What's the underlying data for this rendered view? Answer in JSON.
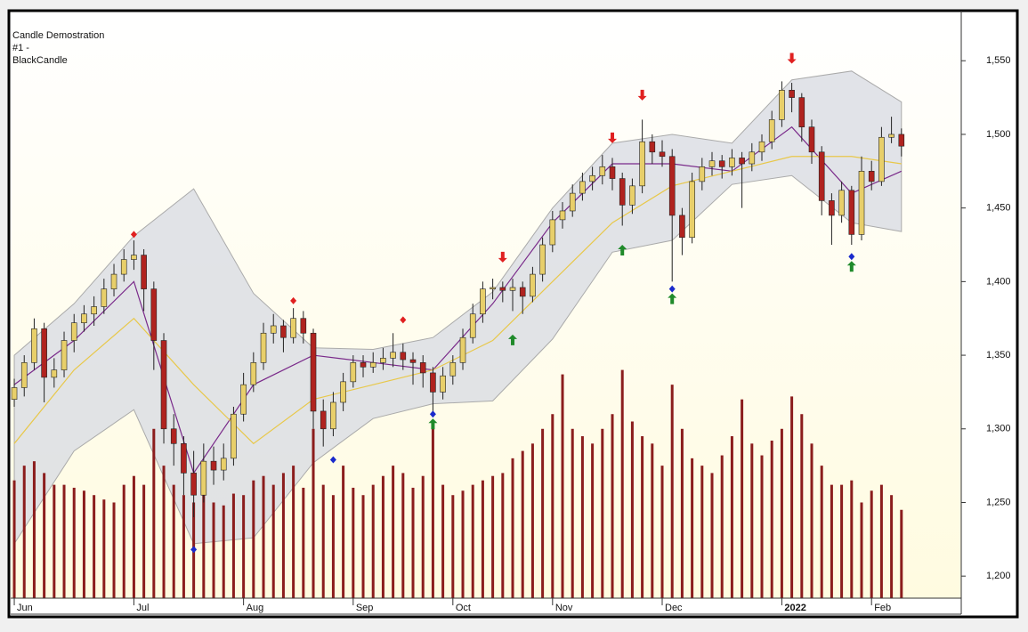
{
  "chart_data": {
    "type": "candlestick",
    "title_lines": [
      "Candle Demostration",
      "#1 -",
      "BlackCandle"
    ],
    "ylim": [
      1185,
      1584
    ],
    "yticks": [
      {
        "value": 1200,
        "label": "1,200"
      },
      {
        "value": 1250,
        "label": "1,250"
      },
      {
        "value": 1300,
        "label": "1,300"
      },
      {
        "value": 1350,
        "label": "1,350"
      },
      {
        "value": 1400,
        "label": "1,400"
      },
      {
        "value": 1450,
        "label": "1,450"
      },
      {
        "value": 1500,
        "label": "1,500"
      },
      {
        "value": 1550,
        "label": "1,550"
      }
    ],
    "xlim": [
      -0.36,
      95
    ],
    "xticks": [
      {
        "value": 0,
        "label": "Jun"
      },
      {
        "value": 12,
        "label": "Jul"
      },
      {
        "value": 23,
        "label": "Aug"
      },
      {
        "value": 34,
        "label": "Sep"
      },
      {
        "value": 44,
        "label": "Oct"
      },
      {
        "value": 54,
        "label": "Nov"
      },
      {
        "value": 65,
        "label": "Dec"
      },
      {
        "value": 77,
        "label": "2022"
      },
      {
        "value": 86,
        "label": "Feb"
      }
    ],
    "up_color": "#e8cf6a",
    "down_color": "#b0231f",
    "volume_color": "#8b1d1d",
    "candles": [
      [
        1320,
        1334,
        1315,
        1328
      ],
      [
        1328,
        1350,
        1322,
        1345
      ],
      [
        1345,
        1375,
        1340,
        1368
      ],
      [
        1368,
        1372,
        1318,
        1335
      ],
      [
        1335,
        1348,
        1328,
        1340
      ],
      [
        1340,
        1366,
        1335,
        1360
      ],
      [
        1360,
        1378,
        1352,
        1372
      ],
      [
        1372,
        1384,
        1366,
        1378
      ],
      [
        1378,
        1390,
        1370,
        1383
      ],
      [
        1383,
        1402,
        1378,
        1395
      ],
      [
        1395,
        1412,
        1390,
        1405
      ],
      [
        1405,
        1422,
        1400,
        1415
      ],
      [
        1415,
        1428,
        1408,
        1418
      ],
      [
        1418,
        1422,
        1380,
        1395
      ],
      [
        1395,
        1400,
        1340,
        1360
      ],
      [
        1360,
        1365,
        1290,
        1300
      ],
      [
        1300,
        1310,
        1275,
        1290
      ],
      [
        1290,
        1295,
        1255,
        1270
      ],
      [
        1270,
        1285,
        1240,
        1255
      ],
      [
        1255,
        1290,
        1250,
        1278
      ],
      [
        1278,
        1288,
        1262,
        1272
      ],
      [
        1272,
        1290,
        1265,
        1280
      ],
      [
        1280,
        1315,
        1275,
        1310
      ],
      [
        1310,
        1338,
        1305,
        1330
      ],
      [
        1330,
        1352,
        1325,
        1345
      ],
      [
        1345,
        1372,
        1340,
        1365
      ],
      [
        1365,
        1378,
        1358,
        1370
      ],
      [
        1370,
        1374,
        1352,
        1362
      ],
      [
        1362,
        1382,
        1358,
        1375
      ],
      [
        1375,
        1380,
        1358,
        1365
      ],
      [
        1365,
        1368,
        1300,
        1312
      ],
      [
        1312,
        1320,
        1288,
        1300
      ],
      [
        1300,
        1325,
        1295,
        1318
      ],
      [
        1318,
        1338,
        1312,
        1332
      ],
      [
        1332,
        1350,
        1328,
        1345
      ],
      [
        1345,
        1350,
        1335,
        1342
      ],
      [
        1342,
        1352,
        1338,
        1345
      ],
      [
        1345,
        1355,
        1340,
        1348
      ],
      [
        1348,
        1365,
        1342,
        1352
      ],
      [
        1352,
        1358,
        1340,
        1347
      ],
      [
        1347,
        1352,
        1330,
        1345
      ],
      [
        1345,
        1350,
        1328,
        1338
      ],
      [
        1338,
        1342,
        1312,
        1325
      ],
      [
        1325,
        1342,
        1320,
        1336
      ],
      [
        1336,
        1350,
        1330,
        1345
      ],
      [
        1345,
        1368,
        1340,
        1362
      ],
      [
        1362,
        1385,
        1358,
        1378
      ],
      [
        1378,
        1400,
        1372,
        1395
      ],
      [
        1395,
        1402,
        1388,
        1396
      ],
      [
        1396,
        1400,
        1386,
        1394
      ],
      [
        1394,
        1402,
        1380,
        1396
      ],
      [
        1396,
        1400,
        1378,
        1390
      ],
      [
        1390,
        1410,
        1386,
        1405
      ],
      [
        1405,
        1430,
        1400,
        1425
      ],
      [
        1425,
        1448,
        1420,
        1442
      ],
      [
        1442,
        1454,
        1436,
        1448
      ],
      [
        1448,
        1466,
        1444,
        1460
      ],
      [
        1460,
        1474,
        1455,
        1468
      ],
      [
        1468,
        1478,
        1462,
        1472
      ],
      [
        1472,
        1486,
        1466,
        1478
      ],
      [
        1478,
        1484,
        1462,
        1470
      ],
      [
        1470,
        1474,
        1438,
        1452
      ],
      [
        1452,
        1470,
        1446,
        1465
      ],
      [
        1465,
        1510,
        1460,
        1495
      ],
      [
        1495,
        1500,
        1480,
        1488
      ],
      [
        1488,
        1496,
        1478,
        1485
      ],
      [
        1485,
        1490,
        1400,
        1445
      ],
      [
        1445,
        1450,
        1418,
        1430
      ],
      [
        1430,
        1474,
        1426,
        1468
      ],
      [
        1468,
        1484,
        1462,
        1478
      ],
      [
        1478,
        1488,
        1472,
        1482
      ],
      [
        1482,
        1486,
        1470,
        1478
      ],
      [
        1478,
        1490,
        1472,
        1484
      ],
      [
        1484,
        1488,
        1450,
        1480
      ],
      [
        1480,
        1494,
        1475,
        1488
      ],
      [
        1488,
        1500,
        1482,
        1495
      ],
      [
        1495,
        1516,
        1490,
        1510
      ],
      [
        1510,
        1536,
        1505,
        1530
      ],
      [
        1530,
        1535,
        1515,
        1525
      ],
      [
        1525,
        1528,
        1495,
        1505
      ],
      [
        1505,
        1510,
        1480,
        1488
      ],
      [
        1488,
        1492,
        1445,
        1455
      ],
      [
        1455,
        1460,
        1425,
        1445
      ],
      [
        1445,
        1468,
        1440,
        1462
      ],
      [
        1462,
        1465,
        1425,
        1432
      ],
      [
        1432,
        1485,
        1428,
        1475
      ],
      [
        1475,
        1482,
        1462,
        1468
      ],
      [
        1468,
        1505,
        1465,
        1498
      ],
      [
        1498,
        1512,
        1494,
        1500
      ],
      [
        1500,
        1504,
        1485,
        1492
      ]
    ],
    "volume": [
      1265,
      1275,
      1278,
      1270,
      1262,
      1262,
      1260,
      1258,
      1255,
      1252,
      1250,
      1262,
      1268,
      1262,
      1300,
      1275,
      1262,
      1255,
      1250,
      1258,
      1250,
      1248,
      1256,
      1255,
      1265,
      1268,
      1262,
      1270,
      1275,
      1260,
      1300,
      1262,
      1255,
      1275,
      1260,
      1255,
      1262,
      1268,
      1275,
      1270,
      1260,
      1268,
      1300,
      1262,
      1255,
      1258,
      1262,
      1265,
      1268,
      1270,
      1280,
      1285,
      1290,
      1300,
      1310,
      1337,
      1300,
      1295,
      1290,
      1300,
      1310,
      1340,
      1305,
      1295,
      1290,
      1275,
      1330,
      1300,
      1280,
      1275,
      1270,
      1282,
      1295,
      1320,
      1290,
      1282,
      1292,
      1300,
      1322,
      1310,
      1290,
      1275,
      1262,
      1262,
      1265,
      1250,
      1258,
      1262,
      1255,
      1245
    ],
    "bands": {
      "x": [
        0,
        6,
        12,
        18,
        24,
        30,
        36,
        42,
        48,
        54,
        60,
        66,
        72,
        78,
        84,
        89
      ],
      "upper": [
        1350,
        1385,
        1431,
        1463,
        1392,
        1355,
        1354,
        1362,
        1393,
        1450,
        1494,
        1500,
        1494,
        1537,
        1543,
        1522
      ],
      "lower": [
        1222,
        1285,
        1313,
        1222,
        1226,
        1277,
        1307,
        1317,
        1319,
        1361,
        1420,
        1428,
        1466,
        1472,
        1440,
        1434
      ],
      "color": "#d9dce3"
    },
    "series": [
      {
        "color": "#7a2a8a",
        "values": [
          1330,
          1360,
          1400,
          1270,
          1330,
          1350,
          1345,
          1340,
          1385,
          1440,
          1480,
          1480,
          1475,
          1505,
          1460,
          1475
        ]
      },
      {
        "color": "#e8c84a",
        "values": [
          1290,
          1340,
          1375,
          1330,
          1290,
          1320,
          1330,
          1340,
          1360,
          1400,
          1440,
          1465,
          1475,
          1485,
          1485,
          1480
        ]
      }
    ],
    "sell_signals": {
      "color": "#e02020",
      "x": [
        49,
        60,
        63,
        78
      ],
      "y": [
        1413,
        1494,
        1523,
        1548
      ]
    },
    "buy_signals": {
      "color": "#1f8a2a",
      "x": [
        42,
        50,
        61,
        66,
        84
      ],
      "y": [
        1307,
        1364,
        1425,
        1392,
        1414
      ]
    },
    "diamonds": [
      {
        "color": "#e02020",
        "x": [
          12,
          28,
          39
        ],
        "y": [
          1432,
          1387,
          1374
        ]
      },
      {
        "color": "#1a2acc",
        "x": [
          18,
          32,
          42,
          66,
          84
        ],
        "y": [
          1218,
          1279,
          1310,
          1395,
          1417
        ]
      }
    ]
  }
}
